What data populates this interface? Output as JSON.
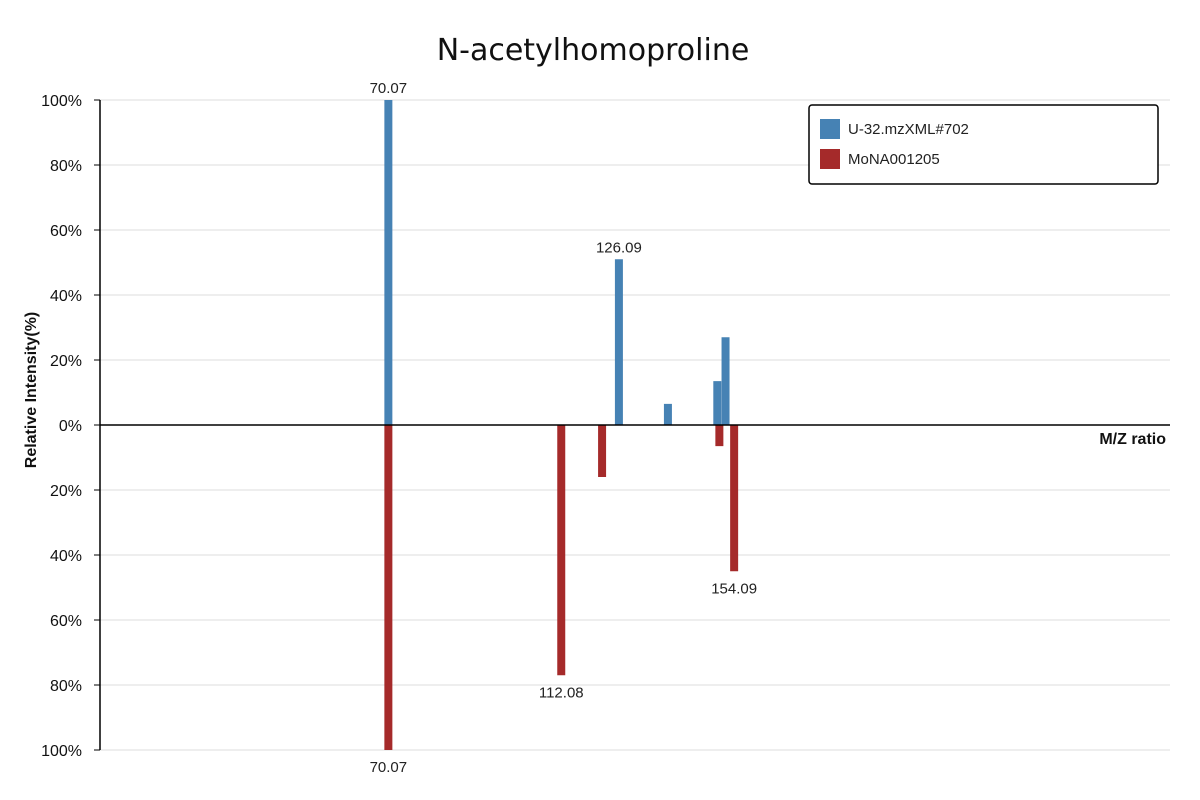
{
  "chart_data": {
    "type": "bar",
    "title": "N-acetylhomoproline",
    "xlabel": "M/Z ratio",
    "ylabel": "Relative Intensity(%)",
    "xlim": [
      0,
      260
    ],
    "ylim": [
      -100,
      100
    ],
    "grid": true,
    "legend_position": "top-right",
    "y_ticks_top": [
      "100%",
      "80%",
      "60%",
      "40%",
      "20%",
      "0%"
    ],
    "y_ticks_bottom": [
      "20%",
      "40%",
      "60%",
      "80%",
      "100%"
    ],
    "series": [
      {
        "name": "U-32.mzXML#702",
        "color": "#4682b4",
        "direction": "up",
        "peaks": [
          {
            "mz": 70.07,
            "intensity": 100,
            "label": "70.07"
          },
          {
            "mz": 126.09,
            "intensity": 51,
            "label": "126.09"
          },
          {
            "mz": 138.0,
            "intensity": 6.5,
            "label": ""
          },
          {
            "mz": 150.0,
            "intensity": 13.5,
            "label": ""
          },
          {
            "mz": 152.0,
            "intensity": 27,
            "label": ""
          }
        ]
      },
      {
        "name": "MoNA001205",
        "color": "#a52a2a",
        "direction": "down",
        "peaks": [
          {
            "mz": 70.07,
            "intensity": 100,
            "label": "70.07"
          },
          {
            "mz": 112.08,
            "intensity": 77,
            "label": "112.08"
          },
          {
            "mz": 122.0,
            "intensity": 16,
            "label": ""
          },
          {
            "mz": 154.09,
            "intensity": 45,
            "label": "154.09"
          },
          {
            "mz": 150.5,
            "intensity": 6.5,
            "label": ""
          }
        ]
      }
    ]
  }
}
